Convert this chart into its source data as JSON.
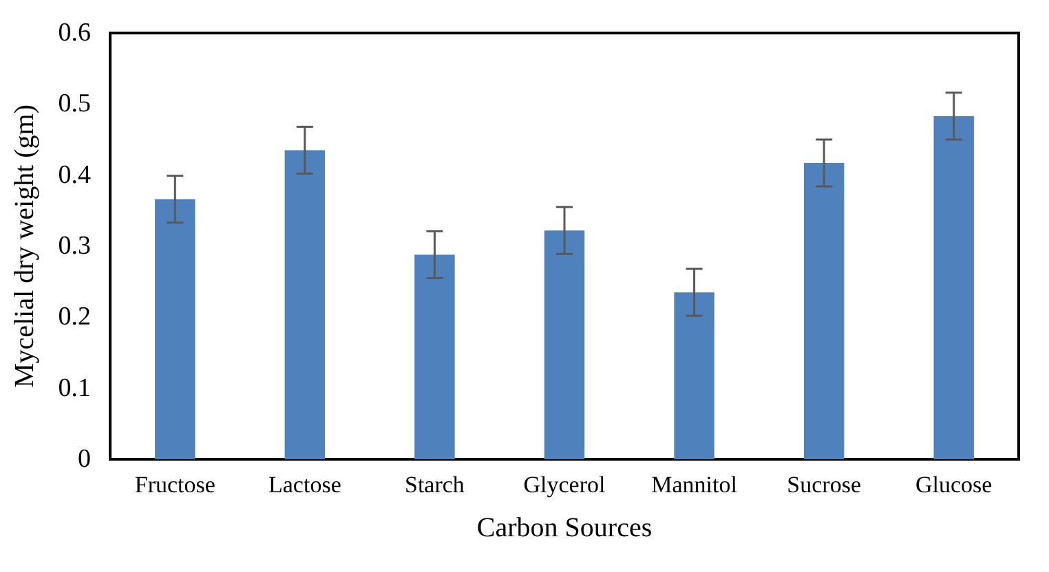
{
  "chart_data": {
    "type": "bar",
    "xlabel": "Carbon Sources",
    "ylabel": "Mycelial dry weight (gm)",
    "categories": [
      "Fructose",
      "Lactose",
      "Starch",
      "Glycerol",
      "Mannitol",
      "Sucrose",
      "Glucose"
    ],
    "values": [
      0.366,
      0.435,
      0.288,
      0.322,
      0.235,
      0.417,
      0.483
    ],
    "errors": [
      0.033,
      0.033,
      0.033,
      0.033,
      0.033,
      0.033,
      0.033
    ],
    "color": "#4f81bd",
    "ylim": [
      0,
      0.6
    ],
    "yticks": [
      0,
      0.1,
      0.2,
      0.3,
      0.4,
      0.5,
      0.6
    ],
    "grid": false
  }
}
